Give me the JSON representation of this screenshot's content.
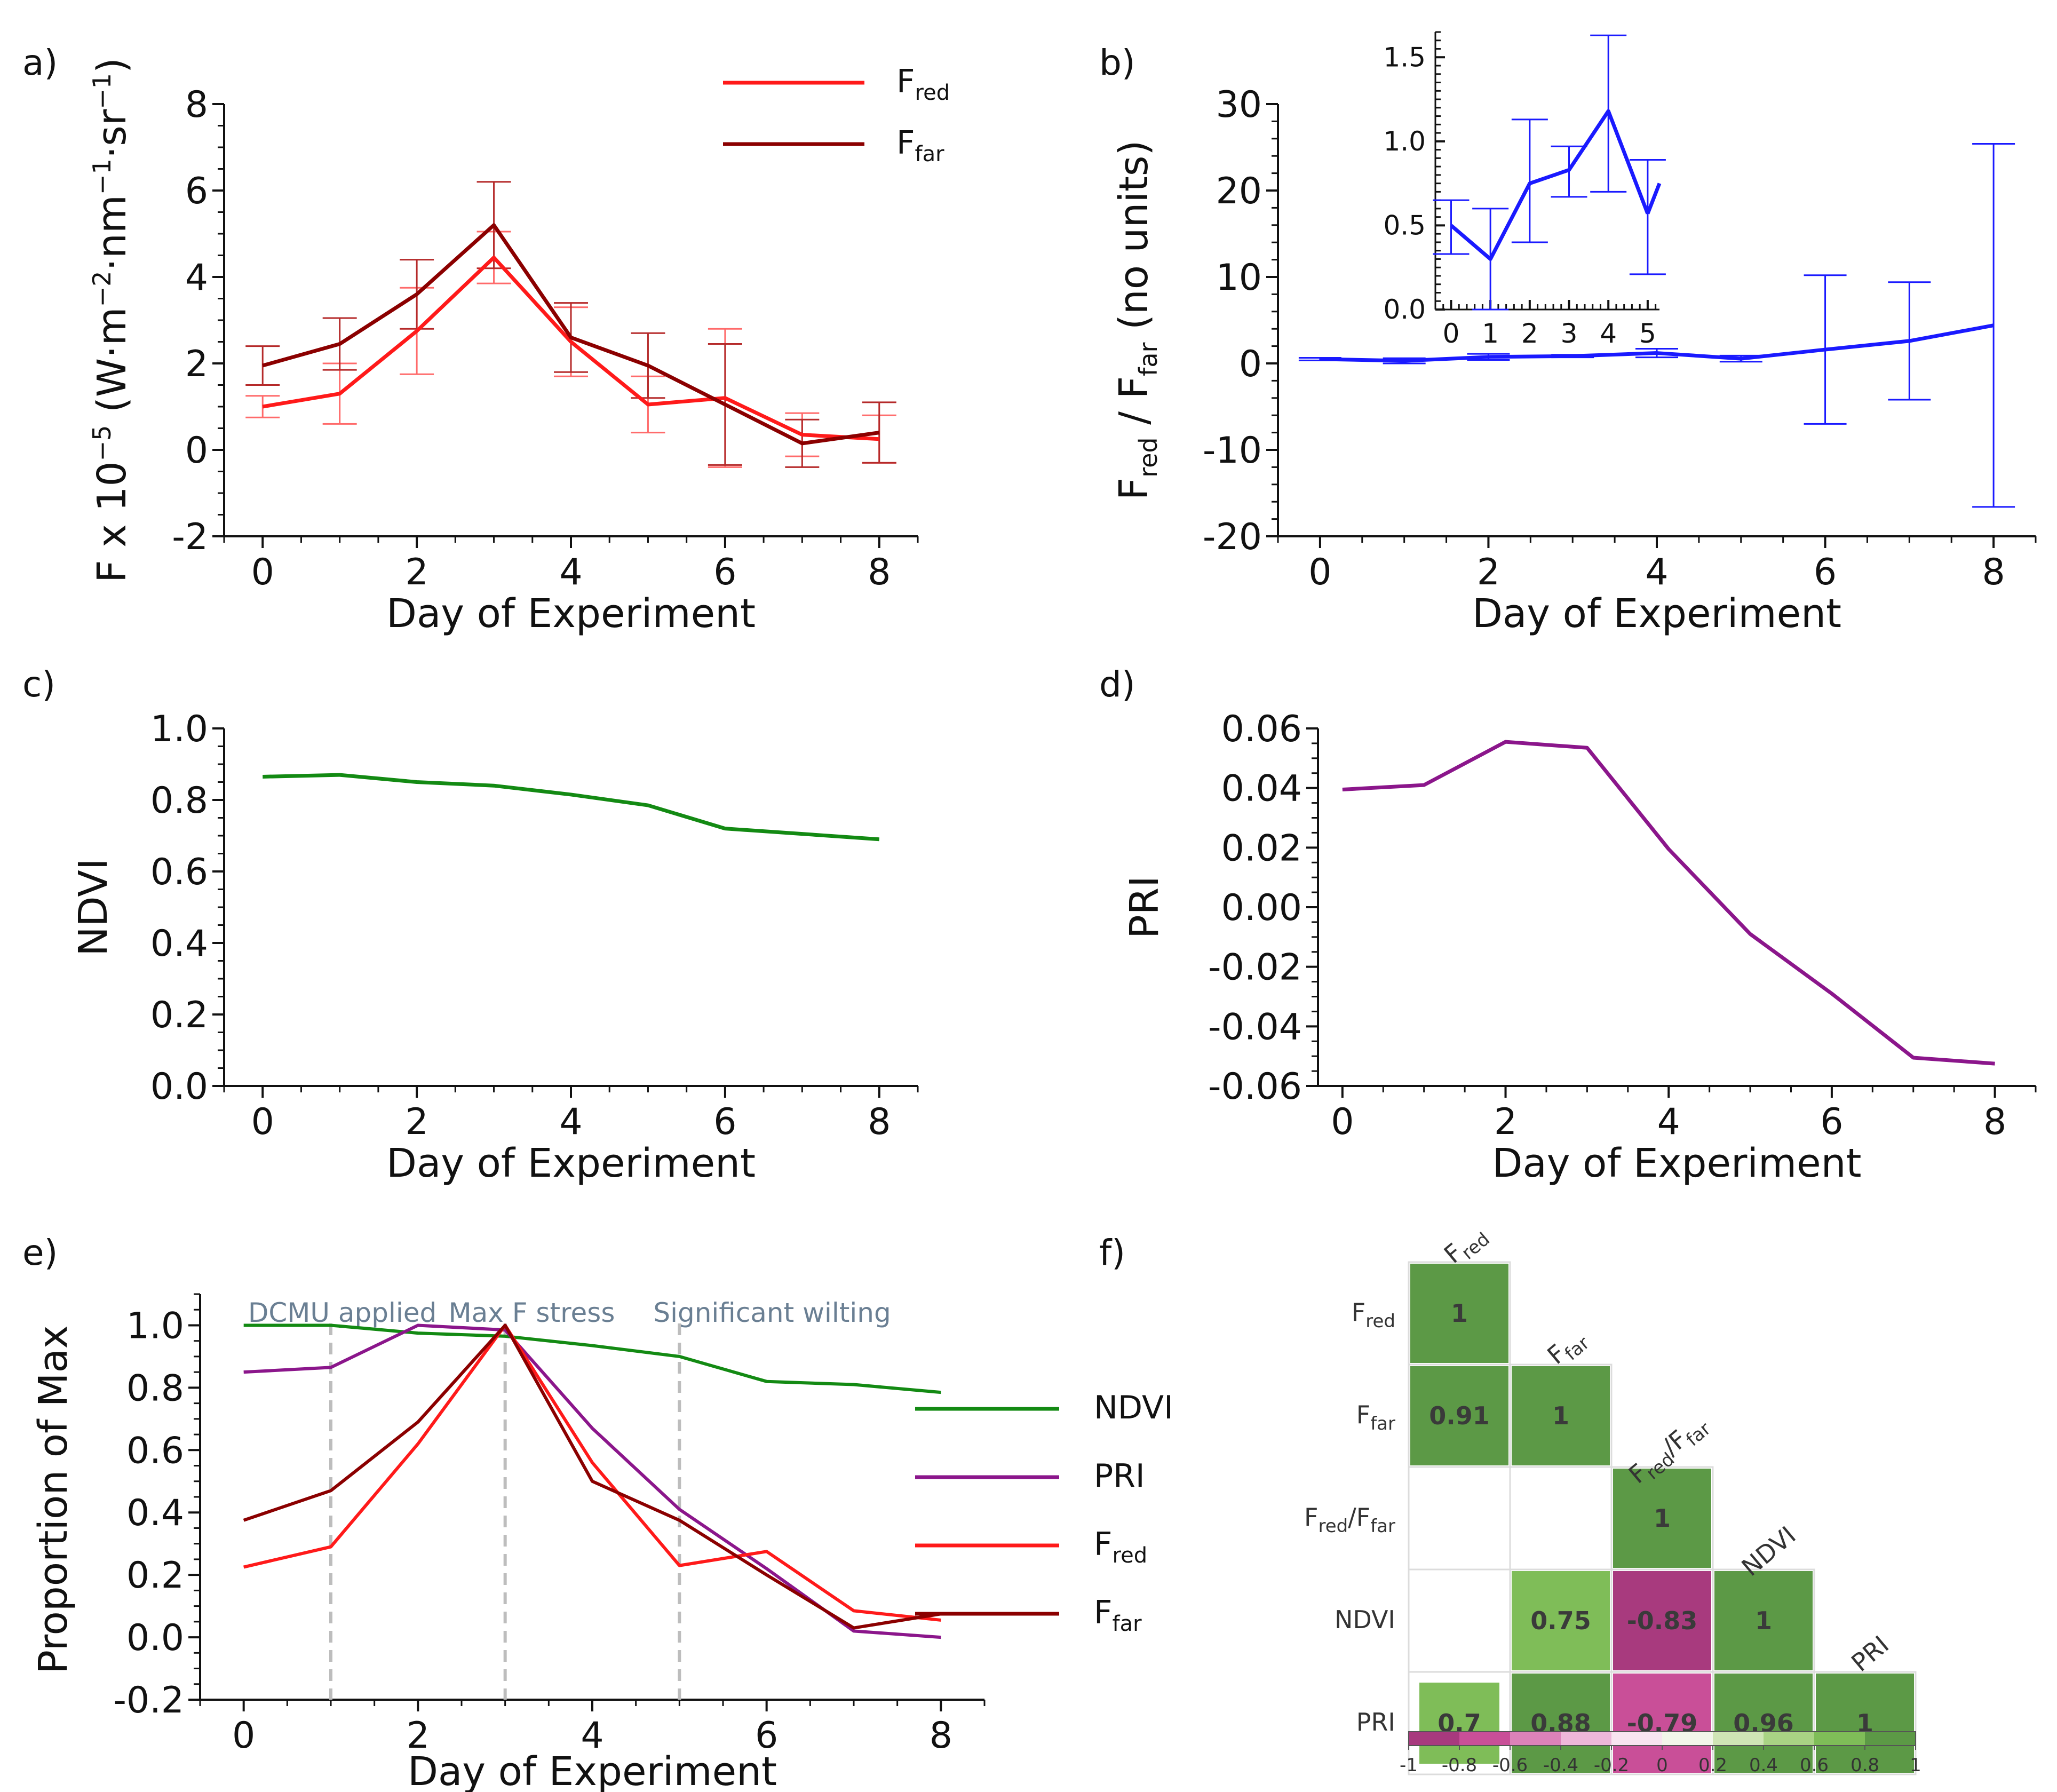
{
  "chart_data": [
    {
      "panel": "a)",
      "type": "line",
      "xlabel": "Day of Experiment",
      "ylabel": "F x 10^-5 (W·m^-2·nm^-1·sr^-1)",
      "ylabel_parts": {
        "base": "F x 10",
        "exp1": "−5",
        "unit1": " (W·m",
        "exp2": "−2",
        "unit2": "·nm",
        "exp3": "−1",
        "unit3": "·sr",
        "exp4": "−1",
        "close": ")"
      },
      "x": [
        0,
        1,
        2,
        3,
        4,
        5,
        6,
        7,
        8
      ],
      "xlim": [
        -0.5,
        8.5
      ],
      "ylim": [
        -2,
        8
      ],
      "xticks": [
        0,
        2,
        4,
        6,
        8
      ],
      "yticks": [
        -2,
        0,
        2,
        4,
        6,
        8
      ],
      "xtick_labels": [
        "0",
        "2",
        "4",
        "6",
        "8"
      ],
      "ytick_labels": [
        "-2",
        "0",
        "2",
        "4",
        "6",
        "8"
      ],
      "series": [
        {
          "name": "F red",
          "legend_main": "F",
          "legend_sub": "red",
          "color": "#ff1a1a",
          "values": [
            1.0,
            1.3,
            2.75,
            4.45,
            2.5,
            1.05,
            1.2,
            0.35,
            0.25
          ],
          "err": [
            0.25,
            0.7,
            1.0,
            0.6,
            0.8,
            0.65,
            1.6,
            0.5,
            0.55
          ]
        },
        {
          "name": "F far",
          "legend_main": "F",
          "legend_sub": "far",
          "color": "#8b0000",
          "values": [
            1.95,
            2.45,
            3.6,
            5.2,
            2.6,
            1.95,
            1.05,
            0.15,
            0.4
          ],
          "err": [
            0.45,
            0.6,
            0.8,
            1.0,
            0.8,
            0.75,
            1.4,
            0.55,
            0.7
          ]
        }
      ]
    },
    {
      "panel": "b)",
      "type": "line",
      "xlabel": "Day of Experiment",
      "ylabel_parts": {
        "a": "F",
        "a_sub": "red",
        "slash": " / F",
        "b_sub": "far",
        "rest": " (no units)"
      },
      "x": [
        0,
        1,
        2,
        3,
        4,
        5,
        6,
        7,
        8
      ],
      "xlim": [
        -0.5,
        8.5
      ],
      "ylim": [
        -20,
        30
      ],
      "xticks": [
        0,
        2,
        4,
        6,
        8
      ],
      "yticks": [
        -20,
        -10,
        0,
        10,
        20,
        30
      ],
      "xtick_labels": [
        "0",
        "2",
        "4",
        "6",
        "8"
      ],
      "ytick_labels": [
        "-20",
        "-10",
        "0",
        "10",
        "20",
        "30"
      ],
      "series": [
        {
          "name": "F red / F far",
          "color": "#1a1aff",
          "values": [
            0.5,
            0.3,
            0.75,
            0.85,
            1.2,
            0.55,
            1.6,
            2.6,
            4.4
          ],
          "err": [
            0.15,
            0.3,
            0.35,
            0.15,
            0.5,
            0.35,
            8.6,
            6.8,
            21.0
          ]
        }
      ],
      "inset": {
        "x": [
          0,
          1,
          2,
          3,
          4,
          5
        ],
        "values": [
          0.5,
          0.3,
          0.75,
          0.83,
          1.18,
          0.57
        ],
        "err_lo": [
          0.17,
          0.3,
          0.35,
          0.16,
          0.48,
          0.36
        ],
        "err_hi": [
          0.15,
          0.3,
          0.38,
          0.14,
          0.45,
          0.32
        ],
        "xlim": [
          -0.4,
          5.3
        ],
        "ylim": [
          0.0,
          1.65
        ],
        "xticks": [
          0,
          1,
          2,
          3,
          4,
          5
        ],
        "yticks": [
          0.0,
          0.5,
          1.0,
          1.5
        ],
        "xtick_labels": [
          "0",
          "1",
          "2",
          "3",
          "4",
          "5"
        ],
        "ytick_labels": [
          "0.0",
          "0.5",
          "1.0",
          "1.5"
        ]
      }
    },
    {
      "panel": "c)",
      "type": "line",
      "xlabel": "Day of Experiment",
      "ylabel": "NDVI",
      "x": [
        0,
        1,
        2,
        3,
        4,
        5,
        6,
        7,
        8
      ],
      "xlim": [
        -0.5,
        8.5
      ],
      "ylim": [
        0.0,
        1.0
      ],
      "xticks": [
        0,
        2,
        4,
        6,
        8
      ],
      "yticks": [
        0.0,
        0.2,
        0.4,
        0.6,
        0.8,
        1.0
      ],
      "xtick_labels": [
        "0",
        "2",
        "4",
        "6",
        "8"
      ],
      "ytick_labels": [
        "0.0",
        "0.2",
        "0.4",
        "0.6",
        "0.8",
        "1.0"
      ],
      "series": [
        {
          "name": "NDVI",
          "color": "#138a13",
          "values": [
            0.865,
            0.87,
            0.85,
            0.84,
            0.815,
            0.785,
            0.72,
            0.705,
            0.69
          ]
        }
      ]
    },
    {
      "panel": "d)",
      "type": "line",
      "xlabel": "Day of Experiment",
      "ylabel": "PRI",
      "x": [
        0,
        1,
        2,
        3,
        4,
        5,
        6,
        7,
        8
      ],
      "xlim": [
        -0.3,
        8.5
      ],
      "ylim": [
        -0.06,
        0.06
      ],
      "xticks": [
        0,
        2,
        4,
        6,
        8
      ],
      "yticks": [
        -0.06,
        -0.04,
        -0.02,
        0.0,
        0.02,
        0.04,
        0.06
      ],
      "xtick_labels": [
        "0",
        "2",
        "4",
        "6",
        "8"
      ],
      "ytick_labels": [
        "-0.06",
        "-0.04",
        "-0.02",
        "0.00",
        "0.02",
        "0.04",
        "0.06"
      ],
      "series": [
        {
          "name": "PRI",
          "color": "#8b168b",
          "values": [
            0.0395,
            0.041,
            0.0555,
            0.0535,
            0.0195,
            -0.009,
            -0.029,
            -0.0505,
            -0.0525
          ]
        }
      ]
    },
    {
      "panel": "e)",
      "type": "line",
      "xlabel": "Day of Experiment",
      "ylabel": "Proportion of Max",
      "x": [
        0,
        1,
        2,
        3,
        4,
        5,
        6,
        7,
        8
      ],
      "xlim": [
        -0.5,
        8.5
      ],
      "ylim": [
        -0.2,
        1.1
      ],
      "xticks": [
        0,
        2,
        4,
        6,
        8
      ],
      "yticks": [
        -0.2,
        0.0,
        0.2,
        0.4,
        0.6,
        0.8,
        1.0
      ],
      "xtick_labels": [
        "0",
        "2",
        "4",
        "6",
        "8"
      ],
      "ytick_labels": [
        "-0.2",
        "0.0",
        "0.2",
        "0.4",
        "0.6",
        "0.8",
        "1.0"
      ],
      "vlines": [
        1,
        3,
        5
      ],
      "annotations": [
        {
          "text": "DCMU applied",
          "x": 0.05
        },
        {
          "text": "Max F stress",
          "x": 2.35
        },
        {
          "text": "Significant wilting",
          "x": 4.7
        }
      ],
      "series": [
        {
          "name": "NDVI",
          "legend_main": "NDVI",
          "legend_sub": "",
          "color": "#138a13",
          "values": [
            1.0,
            1.0,
            0.975,
            0.965,
            0.935,
            0.9,
            0.82,
            0.81,
            0.785
          ]
        },
        {
          "name": "PRI",
          "legend_main": "PRI",
          "legend_sub": "",
          "color": "#8b168b",
          "values": [
            0.85,
            0.865,
            1.0,
            0.985,
            0.67,
            0.41,
            0.22,
            0.02,
            0.0
          ]
        },
        {
          "name": "F red",
          "legend_main": "F",
          "legend_sub": "red",
          "color": "#ff1a1a",
          "values": [
            0.225,
            0.29,
            0.62,
            1.0,
            0.56,
            0.23,
            0.275,
            0.085,
            0.055
          ]
        },
        {
          "name": "F far",
          "legend_main": "F",
          "legend_sub": "far",
          "color": "#8b0000",
          "values": [
            0.375,
            0.47,
            0.69,
            1.0,
            0.5,
            0.375,
            0.2,
            0.03,
            0.075
          ]
        }
      ]
    },
    {
      "panel": "f)",
      "type": "heatmap",
      "labels": [
        {
          "main": "F",
          "sub": "red",
          "tail": ""
        },
        {
          "main": "F",
          "sub": "far",
          "tail": ""
        },
        {
          "main": "F",
          "sub": "red",
          "tail": "/F",
          "sub2": "far"
        },
        {
          "main": "NDVI",
          "sub": "",
          "tail": ""
        },
        {
          "main": "PRI",
          "sub": "",
          "tail": ""
        }
      ],
      "cells": [
        {
          "row": 0,
          "col": 0,
          "value": 1,
          "label": "1"
        },
        {
          "row": 1,
          "col": 0,
          "value": 0.91,
          "label": "0.91"
        },
        {
          "row": 1,
          "col": 1,
          "value": 1,
          "label": "1"
        },
        {
          "row": 2,
          "col": 2,
          "value": 1,
          "label": "1"
        },
        {
          "row": 3,
          "col": 1,
          "value": 0.75,
          "label": "0.75"
        },
        {
          "row": 3,
          "col": 2,
          "value": -0.83,
          "label": "-0.83"
        },
        {
          "row": 3,
          "col": 3,
          "value": 1,
          "label": "1"
        },
        {
          "row": 4,
          "col": 0,
          "value": 0.7,
          "label": "0.7"
        },
        {
          "row": 4,
          "col": 1,
          "value": 0.88,
          "label": "0.88"
        },
        {
          "row": 4,
          "col": 2,
          "value": -0.79,
          "label": "-0.79"
        },
        {
          "row": 4,
          "col": 3,
          "value": 0.96,
          "label": "0.96"
        },
        {
          "row": 4,
          "col": 4,
          "value": 1,
          "label": "1"
        }
      ],
      "colorbar": {
        "range": [
          -1,
          1
        ],
        "tick_labels": [
          "-1",
          "-0.8",
          "-0.6",
          "-0.4",
          "-0.2",
          "0",
          "0.2",
          "0.4",
          "0.6",
          "0.8",
          "1"
        ],
        "colors": [
          "#a83a7e",
          "#c94f98",
          "#dc82b9",
          "#eeb7d9",
          "#f8e4f0",
          "#f2f6ea",
          "#cfe5b5",
          "#a9d384",
          "#7fbd58",
          "#5c9946"
        ]
      }
    }
  ]
}
